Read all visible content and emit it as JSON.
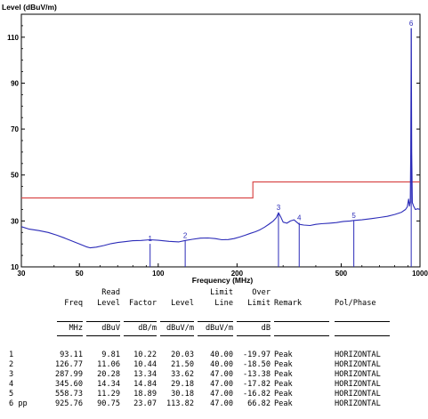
{
  "chart_data": {
    "type": "line",
    "ylabel": "Level (dBuV/m)",
    "xlabel": "Frequency (MHz)",
    "x_scale": "log",
    "xlim": [
      30,
      1000
    ],
    "ylim": [
      10,
      120
    ],
    "x_ticks": [
      {
        "value": 30,
        "label": "30"
      },
      {
        "value": 50,
        "label": "50"
      },
      {
        "value": 100,
        "label": "100"
      },
      {
        "value": 200,
        "label": "200"
      },
      {
        "value": 500,
        "label": "500"
      },
      {
        "value": 1000,
        "label": "1000"
      }
    ],
    "y_ticks": [
      {
        "value": 10,
        "label": "10"
      },
      {
        "value": 30,
        "label": "30"
      },
      {
        "value": 50,
        "label": "50"
      },
      {
        "value": 70,
        "label": "70"
      },
      {
        "value": 90,
        "label": "90"
      },
      {
        "value": 110,
        "label": "110"
      }
    ],
    "limit_line": {
      "color": "#d94a4a",
      "points": [
        [
          30,
          40
        ],
        [
          230,
          40
        ],
        [
          230,
          47
        ],
        [
          1000,
          47
        ]
      ]
    },
    "trace": {
      "color": "#2b2bb8",
      "points": [
        [
          30,
          27.5
        ],
        [
          32,
          26.5
        ],
        [
          35,
          25.8
        ],
        [
          38,
          25.0
        ],
        [
          41,
          23.8
        ],
        [
          44,
          22.5
        ],
        [
          47,
          21.2
        ],
        [
          50,
          20.0
        ],
        [
          53,
          18.8
        ],
        [
          55,
          18.3
        ],
        [
          58,
          18.6
        ],
        [
          62,
          19.3
        ],
        [
          66,
          20.1
        ],
        [
          70,
          20.6
        ],
        [
          75,
          21.0
        ],
        [
          80,
          21.4
        ],
        [
          86,
          21.5
        ],
        [
          93,
          21.8
        ],
        [
          100,
          21.6
        ],
        [
          110,
          21.1
        ],
        [
          120,
          20.9
        ],
        [
          127,
          21.5
        ],
        [
          135,
          22.0
        ],
        [
          145,
          22.5
        ],
        [
          155,
          22.6
        ],
        [
          165,
          22.3
        ],
        [
          175,
          21.8
        ],
        [
          185,
          21.9
        ],
        [
          195,
          22.3
        ],
        [
          205,
          23.0
        ],
        [
          215,
          23.8
        ],
        [
          225,
          24.6
        ],
        [
          235,
          25.3
        ],
        [
          245,
          26.2
        ],
        [
          255,
          27.3
        ],
        [
          265,
          28.6
        ],
        [
          275,
          30.0
        ],
        [
          283,
          31.5
        ],
        [
          288,
          33.6
        ],
        [
          293,
          32.0
        ],
        [
          300,
          29.5
        ],
        [
          310,
          29.0
        ],
        [
          320,
          30.0
        ],
        [
          330,
          30.5
        ],
        [
          338,
          29.5
        ],
        [
          346,
          28.5
        ],
        [
          360,
          28.2
        ],
        [
          380,
          28.0
        ],
        [
          400,
          28.5
        ],
        [
          420,
          28.8
        ],
        [
          450,
          29.0
        ],
        [
          480,
          29.3
        ],
        [
          510,
          29.8
        ],
        [
          540,
          30.0
        ],
        [
          559,
          30.2
        ],
        [
          600,
          30.5
        ],
        [
          650,
          31.0
        ],
        [
          700,
          31.5
        ],
        [
          750,
          32.0
        ],
        [
          800,
          32.8
        ],
        [
          850,
          33.8
        ],
        [
          880,
          35.0
        ],
        [
          895,
          36.2
        ],
        [
          905,
          39.5
        ],
        [
          912,
          36.5
        ],
        [
          918,
          38.5
        ],
        [
          922,
          60.0
        ],
        [
          926,
          113.8
        ],
        [
          930,
          60.0
        ],
        [
          935,
          38.0
        ],
        [
          945,
          36.5
        ],
        [
          960,
          35.0
        ],
        [
          980,
          35.3
        ],
        [
          1000,
          35.0
        ]
      ]
    },
    "markers": [
      {
        "label": "1",
        "freq": 93.11,
        "level": 20.03
      },
      {
        "label": "2",
        "freq": 126.77,
        "level": 21.5
      },
      {
        "label": "3",
        "freq": 287.99,
        "level": 33.62
      },
      {
        "label": "4",
        "freq": 345.6,
        "level": 29.18
      },
      {
        "label": "5",
        "freq": 558.73,
        "level": 30.18
      },
      {
        "label": "6",
        "freq": 925.76,
        "level": 113.82
      }
    ]
  },
  "table": {
    "headers": {
      "freq": [
        "",
        "Freq"
      ],
      "read_level": [
        "Read",
        "Level"
      ],
      "factor": [
        "",
        "Factor"
      ],
      "level": [
        "",
        "Level"
      ],
      "limit_line": [
        "Limit",
        "Line"
      ],
      "over_limit": [
        "Over",
        "Limit"
      ],
      "remark": [
        "",
        "Remark"
      ],
      "pol_phase": [
        "",
        "Pol/Phase"
      ]
    },
    "units": {
      "freq": "MHz",
      "read_level": "dBuV",
      "factor": "dB/m",
      "level": "dBuV/m",
      "limit_line": "dBuV/m",
      "over_limit": "dB"
    },
    "rows": [
      {
        "no": "1",
        "freq": "93.11",
        "read_level": "9.81",
        "factor": "10.22",
        "level": "20.03",
        "limit_line": "40.00",
        "over_limit": "-19.97",
        "remark": "Peak",
        "pol_phase": "HORIZONTAL"
      },
      {
        "no": "2",
        "freq": "126.77",
        "read_level": "11.06",
        "factor": "10.44",
        "level": "21.50",
        "limit_line": "40.00",
        "over_limit": "-18.50",
        "remark": "Peak",
        "pol_phase": "HORIZONTAL"
      },
      {
        "no": "3",
        "freq": "287.99",
        "read_level": "20.28",
        "factor": "13.34",
        "level": "33.62",
        "limit_line": "47.00",
        "over_limit": "-13.38",
        "remark": "Peak",
        "pol_phase": "HORIZONTAL"
      },
      {
        "no": "4",
        "freq": "345.60",
        "read_level": "14.34",
        "factor": "14.84",
        "level": "29.18",
        "limit_line": "47.00",
        "over_limit": "-17.82",
        "remark": "Peak",
        "pol_phase": "HORIZONTAL"
      },
      {
        "no": "5",
        "freq": "558.73",
        "read_level": "11.29",
        "factor": "18.89",
        "level": "30.18",
        "limit_line": "47.00",
        "over_limit": "-16.82",
        "remark": "Peak",
        "pol_phase": "HORIZONTAL"
      },
      {
        "no": "6 pp",
        "freq": "925.76",
        "read_level": "90.75",
        "factor": "23.07",
        "level": "113.82",
        "limit_line": "47.00",
        "over_limit": "66.82",
        "remark": "Peak",
        "pol_phase": "HORIZONTAL"
      }
    ]
  }
}
